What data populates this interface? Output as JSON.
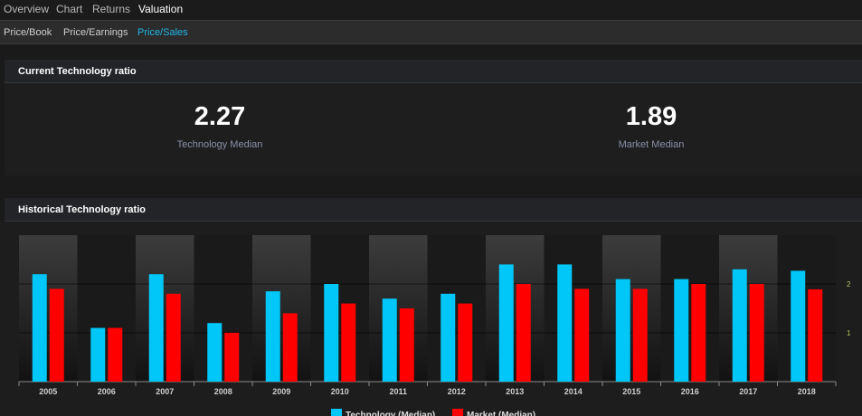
{
  "nav": {
    "tabs": [
      {
        "label": "Overview",
        "active": false
      },
      {
        "label": "Chart",
        "active": false
      },
      {
        "label": "Returns",
        "active": false
      },
      {
        "label": "Valuation",
        "active": true
      }
    ]
  },
  "subnav": {
    "tabs": [
      {
        "label": "Price/Book",
        "active": false
      },
      {
        "label": "Price/Earnings",
        "active": false
      },
      {
        "label": "Price/Sales",
        "active": true
      }
    ]
  },
  "current": {
    "title": "Current Technology ratio",
    "tech_value": "2.27",
    "tech_label": "Technology Median",
    "market_value": "1.89",
    "market_label": "Market Median"
  },
  "historical": {
    "title": "Historical Technology ratio"
  },
  "colors": {
    "technology": "#00c7f7",
    "market": "#ff0000",
    "accent": "#1fb6e8",
    "ytick": "#b8c45a"
  },
  "chart_data": {
    "type": "bar",
    "categories": [
      "2005",
      "2006",
      "2007",
      "2008",
      "2009",
      "2010",
      "2011",
      "2012",
      "2013",
      "2014",
      "2015",
      "2016",
      "2017",
      "2018"
    ],
    "series": [
      {
        "name": "Technology (Median)",
        "values": [
          2.2,
          1.1,
          2.2,
          1.2,
          1.85,
          2.0,
          1.7,
          1.8,
          2.4,
          2.4,
          2.1,
          2.1,
          2.3,
          2.27
        ]
      },
      {
        "name": "Market (Median)",
        "values": [
          1.9,
          1.1,
          1.8,
          1.0,
          1.4,
          1.6,
          1.5,
          1.6,
          2.0,
          1.9,
          1.9,
          2.0,
          2.0,
          1.89
        ]
      }
    ],
    "ytick_labels": [
      "1",
      "2"
    ],
    "ylim": [
      0,
      3
    ],
    "xlabel": "",
    "ylabel": "",
    "legend_position": "bottom",
    "grid": true
  }
}
